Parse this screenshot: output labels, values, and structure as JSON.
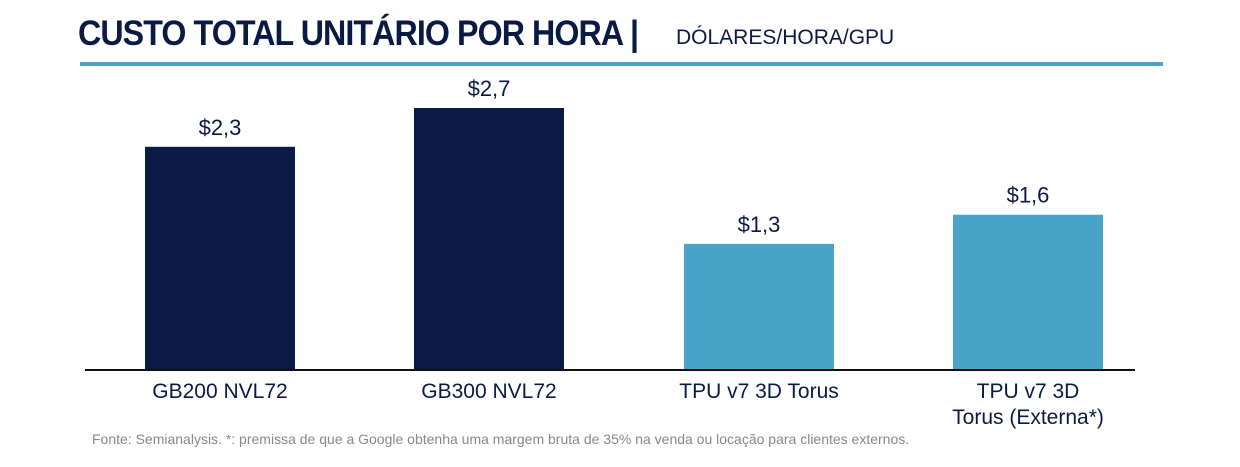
{
  "title": "CUSTO TOTAL UNITÁRIO POR HORA |",
  "subtitle": "DÓLARES/HORA/GPU",
  "footnote": "Fonte: Semianalysis. *: premissa de que a Google obtenha uma margem bruta de 35% na venda ou locação para clientes externos.",
  "chart_data": {
    "type": "bar",
    "title": "CUSTO TOTAL UNITÁRIO POR HORA | DÓLARES/HORA/GPU",
    "categories": [
      [
        "GB200 NVL72"
      ],
      [
        "GB300 NVL72"
      ],
      [
        "TPU v7 3D Torus"
      ],
      [
        "TPU v7 3D",
        "Torus (Externa*)"
      ]
    ],
    "values": [
      2.3,
      2.7,
      1.3,
      1.6
    ],
    "labels": [
      "$2,3",
      "$2,7",
      "$1,3",
      "$1,6"
    ],
    "colors": [
      "#0a1a45",
      "#0a1a45",
      "#4aa3c8",
      "#4aa3c8"
    ],
    "ylim": [
      0,
      2.7
    ],
    "xlabel": "",
    "ylabel": ""
  }
}
